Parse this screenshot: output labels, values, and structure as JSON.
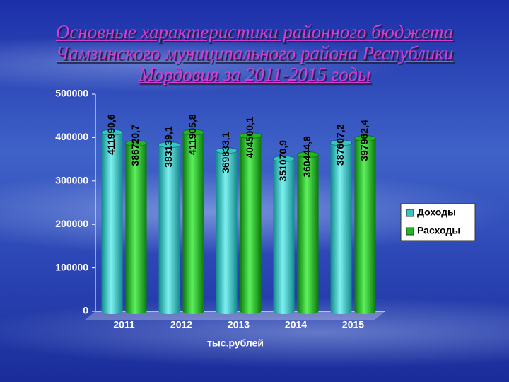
{
  "chart_data": {
    "type": "bar",
    "title": "Основные характеристики районного бюджета Чамзинского муниципального района Республики Мордовия за 2011-2015 годы",
    "x_label": "тыс.рублей",
    "categories": [
      "2011",
      "2012",
      "2013",
      "2014",
      "2015"
    ],
    "series": [
      {
        "name": "Доходы",
        "color": "#33c6c6",
        "values": [
          411990.6,
          383139.1,
          369833.1,
          351070.9,
          387607.2
        ],
        "value_labels": [
          "411990,6",
          "383139,1",
          "369833,1",
          "351070,9",
          "387607,2"
        ]
      },
      {
        "name": "Расходы",
        "color": "#1fb81f",
        "values": [
          386720.7,
          411905.8,
          404500.1,
          360444.8,
          397962.4
        ],
        "value_labels": [
          "386720,7",
          "411905,8",
          "404500,1",
          "360444,8",
          "397962,4"
        ]
      }
    ],
    "ylim": [
      0,
      500000
    ],
    "yticks": [
      0,
      100000,
      200000,
      300000,
      400000,
      500000
    ],
    "legend": "right"
  }
}
